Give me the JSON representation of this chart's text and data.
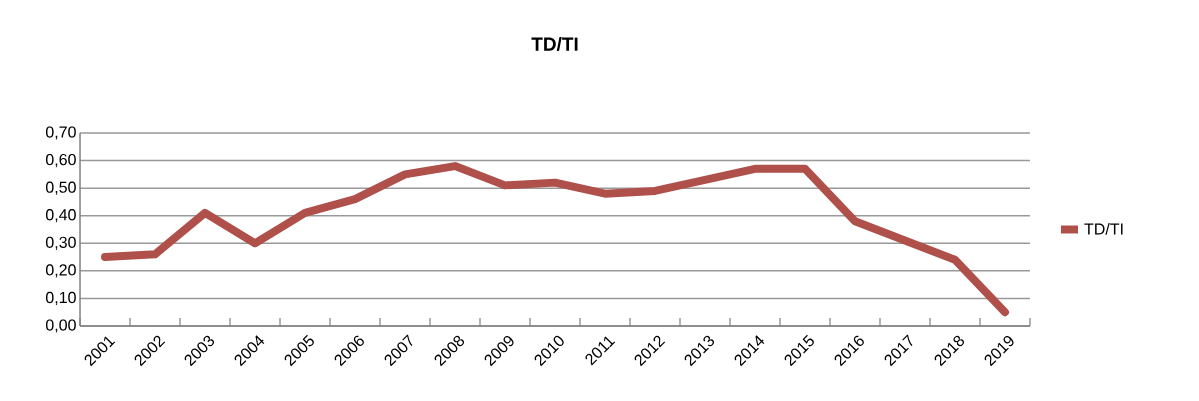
{
  "chart_data": {
    "type": "line",
    "title": "TD/TI",
    "categories": [
      "2001",
      "2002",
      "2003",
      "2004",
      "2005",
      "2006",
      "2007",
      "2008",
      "2009",
      "2010",
      "2011",
      "2012",
      "2013",
      "2014",
      "2015",
      "2016",
      "2017",
      "2018",
      "2019"
    ],
    "series": [
      {
        "name": "TD/TI",
        "color": "#b0504a",
        "values": [
          0.25,
          0.26,
          0.41,
          0.3,
          0.41,
          0.46,
          0.55,
          0.58,
          0.51,
          0.52,
          0.48,
          0.49,
          0.53,
          0.57,
          0.57,
          0.38,
          0.31,
          0.24,
          0.05
        ]
      }
    ],
    "ylim": [
      0,
      0.7
    ],
    "yticks": [
      {
        "value": 0,
        "label": "0,00"
      },
      {
        "value": 0.1,
        "label": "0,10"
      },
      {
        "value": 0.2,
        "label": "0,20"
      },
      {
        "value": 0.3,
        "label": "0,30"
      },
      {
        "value": 0.4,
        "label": "0,40"
      },
      {
        "value": 0.5,
        "label": "0,50"
      },
      {
        "value": 0.6,
        "label": "0,60"
      },
      {
        "value": 0.7,
        "label": "0,70"
      }
    ],
    "grid": "y",
    "legend": "right",
    "marker": "none",
    "line_style": "solid"
  }
}
